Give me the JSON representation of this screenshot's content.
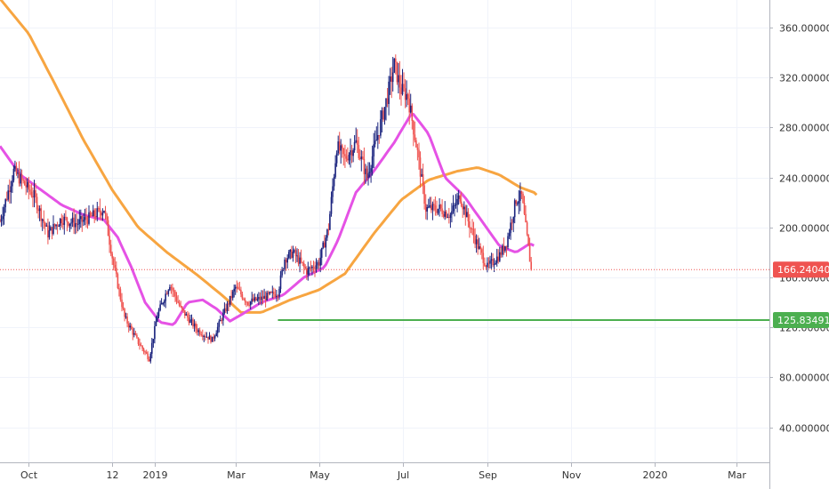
{
  "chart_data": {
    "type": "candlestick",
    "y_ticks": [
      "40.000000",
      "80.000000",
      "120.000000",
      "160.000000",
      "200.000000",
      "240.000000",
      "280.000000",
      "320.000000",
      "360.000000"
    ],
    "y_tick_values": [
      40,
      80,
      120,
      160,
      200,
      240,
      280,
      320,
      360
    ],
    "ylim": [
      12,
      382
    ],
    "x_ticks": [
      "Oct",
      "12",
      "2019",
      "Mar",
      "May",
      "Jul",
      "Sep",
      "Nov",
      "2020",
      "Mar"
    ],
    "x_tick_dates": [
      "2018-10-01",
      "2018-12-01",
      "2019-01-01",
      "2019-03-01",
      "2019-05-01",
      "2019-07-01",
      "2019-09-01",
      "2019-11-01",
      "2020-01-01",
      "2020-03-01"
    ],
    "xlim": [
      "2018-09-10",
      "2020-03-25"
    ],
    "current_price": {
      "label": "166.240401",
      "value": 166.240401,
      "color": "#ef5350"
    },
    "support_line": {
      "label": "125.834919",
      "value": 125.834919,
      "color": "#4caf50",
      "from": "2019-04-01"
    },
    "ma_fast": {
      "color": "#e552e5"
    },
    "ma_slow": {
      "color": "#f7a541"
    },
    "up_color": "#1a237e",
    "down_color": "#ef5350",
    "price_path": [
      [
        "2018-09-10",
        205
      ],
      [
        "2018-09-20",
        245
      ],
      [
        "2018-10-05",
        225
      ],
      [
        "2018-10-15",
        195
      ],
      [
        "2018-10-25",
        207
      ],
      [
        "2018-11-05",
        203
      ],
      [
        "2018-11-15",
        208
      ],
      [
        "2018-11-25",
        215
      ],
      [
        "2018-12-02",
        170
      ],
      [
        "2018-12-10",
        128
      ],
      [
        "2018-12-20",
        108
      ],
      [
        "2018-12-28",
        95
      ],
      [
        "2019-01-03",
        130
      ],
      [
        "2019-01-12",
        155
      ],
      [
        "2019-01-20",
        135
      ],
      [
        "2019-02-01",
        118
      ],
      [
        "2019-02-12",
        110
      ],
      [
        "2019-02-20",
        130
      ],
      [
        "2019-03-01",
        152
      ],
      [
        "2019-03-10",
        140
      ],
      [
        "2019-03-20",
        143
      ],
      [
        "2019-04-01",
        148
      ],
      [
        "2019-04-06",
        175
      ],
      [
        "2019-04-12",
        180
      ],
      [
        "2019-04-22",
        165
      ],
      [
        "2019-05-01",
        172
      ],
      [
        "2019-05-08",
        200
      ],
      [
        "2019-05-14",
        265
      ],
      [
        "2019-05-20",
        255
      ],
      [
        "2019-05-28",
        268
      ],
      [
        "2019-06-05",
        240
      ],
      [
        "2019-06-12",
        270
      ],
      [
        "2019-06-20",
        305
      ],
      [
        "2019-06-25",
        330
      ],
      [
        "2019-06-30",
        310
      ],
      [
        "2019-07-05",
        305
      ],
      [
        "2019-07-12",
        260
      ],
      [
        "2019-07-18",
        215
      ],
      [
        "2019-07-28",
        215
      ],
      [
        "2019-08-05",
        210
      ],
      [
        "2019-08-12",
        225
      ],
      [
        "2019-08-18",
        205
      ],
      [
        "2019-08-25",
        185
      ],
      [
        "2019-09-01",
        168
      ],
      [
        "2019-09-10",
        178
      ],
      [
        "2019-09-15",
        188
      ],
      [
        "2019-09-22",
        222
      ],
      [
        "2019-09-26",
        225
      ],
      [
        "2019-10-03",
        166.24
      ]
    ],
    "ma_fast_path": [
      [
        "2018-09-10",
        265
      ],
      [
        "2018-09-25",
        242
      ],
      [
        "2018-10-10",
        230
      ],
      [
        "2018-10-25",
        218
      ],
      [
        "2018-11-10",
        210
      ],
      [
        "2018-11-25",
        206
      ],
      [
        "2018-12-05",
        192
      ],
      [
        "2018-12-15",
        168
      ],
      [
        "2018-12-25",
        140
      ],
      [
        "2019-01-05",
        124
      ],
      [
        "2019-01-15",
        122
      ],
      [
        "2019-01-25",
        140
      ],
      [
        "2019-02-05",
        142
      ],
      [
        "2019-02-15",
        135
      ],
      [
        "2019-02-25",
        125
      ],
      [
        "2019-03-05",
        130
      ],
      [
        "2019-03-20",
        140
      ],
      [
        "2019-04-05",
        146
      ],
      [
        "2019-04-20",
        160
      ],
      [
        "2019-05-05",
        168
      ],
      [
        "2019-05-15",
        190
      ],
      [
        "2019-05-28",
        228
      ],
      [
        "2019-06-10",
        245
      ],
      [
        "2019-06-25",
        268
      ],
      [
        "2019-07-08",
        292
      ],
      [
        "2019-07-20",
        275
      ],
      [
        "2019-08-01",
        240
      ],
      [
        "2019-08-15",
        225
      ],
      [
        "2019-08-28",
        205
      ],
      [
        "2019-09-10",
        185
      ],
      [
        "2019-09-22",
        180
      ],
      [
        "2019-10-02",
        187
      ],
      [
        "2019-10-06",
        185
      ]
    ],
    "ma_slow_path": [
      [
        "2018-09-10",
        383
      ],
      [
        "2018-10-01",
        355
      ],
      [
        "2018-10-20",
        315
      ],
      [
        "2018-11-10",
        270
      ],
      [
        "2018-12-01",
        230
      ],
      [
        "2018-12-20",
        200
      ],
      [
        "2019-01-10",
        180
      ],
      [
        "2019-02-01",
        162
      ],
      [
        "2019-02-20",
        145
      ],
      [
        "2019-03-05",
        132
      ],
      [
        "2019-03-20",
        132
      ],
      [
        "2019-04-10",
        142
      ],
      [
        "2019-05-01",
        150
      ],
      [
        "2019-05-20",
        163
      ],
      [
        "2019-06-10",
        195
      ],
      [
        "2019-06-30",
        222
      ],
      [
        "2019-07-20",
        238
      ],
      [
        "2019-08-10",
        245
      ],
      [
        "2019-08-25",
        248
      ],
      [
        "2019-09-10",
        242
      ],
      [
        "2019-09-25",
        232
      ],
      [
        "2019-10-05",
        228
      ],
      [
        "2019-10-08",
        225
      ]
    ]
  }
}
